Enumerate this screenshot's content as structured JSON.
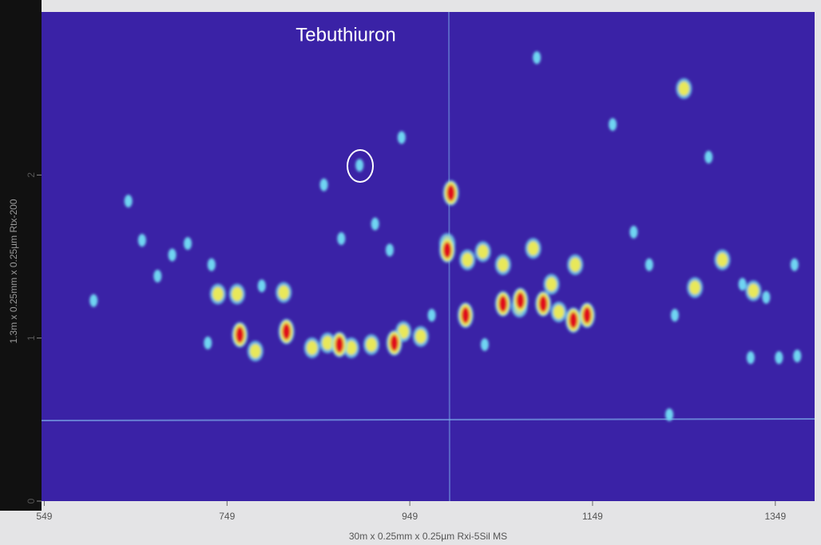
{
  "chart_data": {
    "type": "scatter",
    "annotation": "Tebuthiuron",
    "xlabel": "30m x 0.25mm x 0.25µm Rxi-5Sil MS",
    "ylabel": "1.3m x 0.25mm x 0.25µm Rtx-200",
    "xlim": [
      546,
      1392
    ],
    "ylim": [
      0,
      3
    ],
    "xticks": [
      549,
      749,
      949,
      1149,
      1349
    ],
    "yticks": [
      0,
      1,
      2
    ],
    "series": [
      {
        "color": "#6fd4f2",
        "x": [
          641,
          656,
          689,
          732,
          603,
          673,
          706,
          787,
          855,
          874,
          911,
          927,
          940,
          894,
          1088,
          1171,
          1194,
          1211,
          1233,
          1276,
          1370,
          1322,
          1353,
          1373,
          1339,
          728,
          1239,
          1031,
          973,
          1313
        ],
        "y": [
          1.84,
          1.6,
          1.51,
          1.45,
          1.23,
          1.38,
          1.58,
          1.32,
          1.94,
          1.61,
          1.7,
          1.54,
          2.23,
          2.06,
          2.72,
          2.31,
          1.65,
          1.45,
          0.53,
          2.11,
          1.45,
          0.88,
          0.88,
          0.89,
          1.25,
          0.97,
          1.14,
          0.96,
          1.14,
          1.33
        ]
      },
      {
        "color": "#e8e85a",
        "x": [
          739,
          760,
          811,
          780,
          842,
          859,
          885,
          907,
          942,
          961,
          1012,
          1029,
          990,
          1051,
          1084,
          1104,
          1130,
          1261,
          1291,
          1325,
          1249,
          1069,
          1112
        ],
        "y": [
          1.27,
          1.27,
          1.28,
          0.92,
          0.94,
          0.97,
          0.94,
          0.96,
          1.04,
          1.01,
          1.48,
          1.53,
          1.58,
          1.45,
          1.55,
          1.33,
          1.45,
          1.31,
          1.48,
          1.29,
          2.53,
          1.19,
          1.16
        ]
      },
      {
        "color": "#e0101a",
        "x": [
          994,
          763,
          814,
          932,
          1010,
          1051,
          1095,
          1128,
          1143,
          990,
          1070,
          872
        ],
        "y": [
          1.89,
          1.02,
          1.04,
          0.97,
          1.14,
          1.21,
          1.21,
          1.11,
          1.14,
          1.54,
          1.23,
          0.96
        ]
      }
    ]
  }
}
